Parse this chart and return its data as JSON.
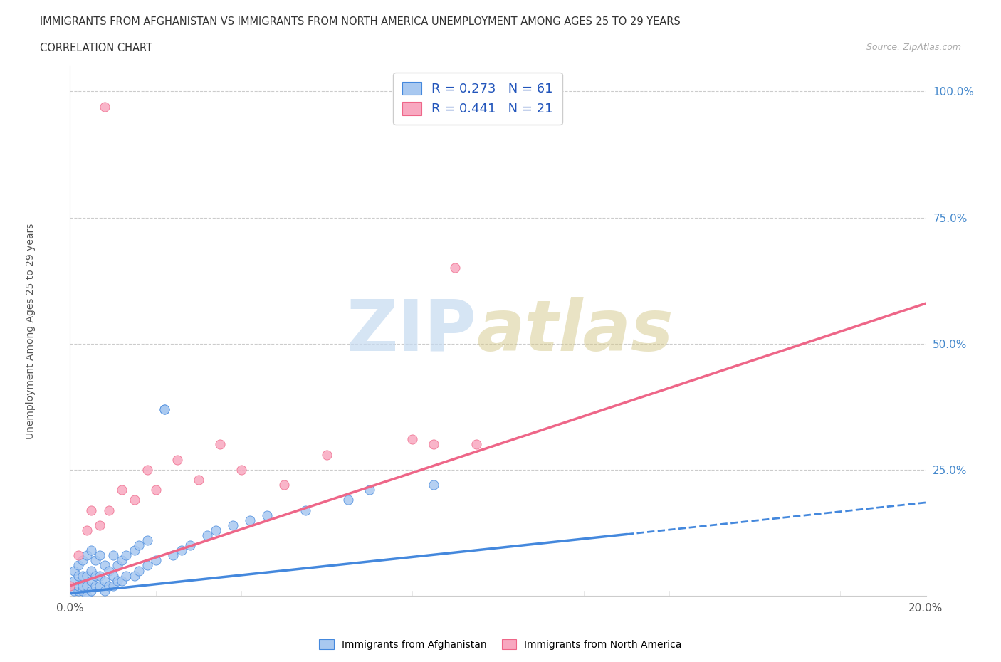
{
  "title_line1": "IMMIGRANTS FROM AFGHANISTAN VS IMMIGRANTS FROM NORTH AMERICA UNEMPLOYMENT AMONG AGES 25 TO 29 YEARS",
  "title_line2": "CORRELATION CHART",
  "source_text": "Source: ZipAtlas.com",
  "ylabel": "Unemployment Among Ages 25 to 29 years",
  "x_min": 0.0,
  "x_max": 0.2,
  "y_min": 0.0,
  "y_max": 1.05,
  "r_afghanistan": 0.273,
  "n_afghanistan": 61,
  "r_north_america": 0.441,
  "n_north_america": 21,
  "color_afghanistan": "#a8c8f0",
  "color_north_america": "#f8a8c0",
  "color_trend_afghanistan": "#4488dd",
  "color_trend_north_america": "#ee6688",
  "afg_trend_intercept": 0.005,
  "afg_trend_slope": 0.9,
  "nam_trend_intercept": 0.02,
  "nam_trend_slope": 2.8,
  "afg_trend_solid_end": 0.13,
  "afg_trend_dashed_end": 0.2,
  "afghanistan_x": [
    0.0,
    0.001,
    0.001,
    0.001,
    0.002,
    0.002,
    0.002,
    0.002,
    0.003,
    0.003,
    0.003,
    0.003,
    0.004,
    0.004,
    0.004,
    0.004,
    0.005,
    0.005,
    0.005,
    0.005,
    0.006,
    0.006,
    0.006,
    0.007,
    0.007,
    0.007,
    0.008,
    0.008,
    0.008,
    0.009,
    0.009,
    0.01,
    0.01,
    0.01,
    0.011,
    0.011,
    0.012,
    0.012,
    0.013,
    0.013,
    0.015,
    0.015,
    0.016,
    0.016,
    0.018,
    0.018,
    0.02,
    0.022,
    0.022,
    0.024,
    0.026,
    0.028,
    0.032,
    0.034,
    0.038,
    0.042,
    0.046,
    0.055,
    0.065,
    0.07,
    0.085
  ],
  "afghanistan_y": [
    0.02,
    0.01,
    0.03,
    0.05,
    0.01,
    0.02,
    0.04,
    0.06,
    0.01,
    0.02,
    0.04,
    0.07,
    0.0,
    0.02,
    0.04,
    0.08,
    0.01,
    0.03,
    0.05,
    0.09,
    0.02,
    0.04,
    0.07,
    0.02,
    0.04,
    0.08,
    0.01,
    0.03,
    0.06,
    0.02,
    0.05,
    0.02,
    0.04,
    0.08,
    0.03,
    0.06,
    0.03,
    0.07,
    0.04,
    0.08,
    0.04,
    0.09,
    0.05,
    0.1,
    0.06,
    0.11,
    0.07,
    0.37,
    0.37,
    0.08,
    0.09,
    0.1,
    0.12,
    0.13,
    0.14,
    0.15,
    0.16,
    0.17,
    0.19,
    0.21,
    0.22
  ],
  "north_america_x": [
    0.0,
    0.002,
    0.004,
    0.005,
    0.007,
    0.008,
    0.009,
    0.012,
    0.015,
    0.018,
    0.02,
    0.025,
    0.03,
    0.035,
    0.04,
    0.05,
    0.06,
    0.08,
    0.085,
    0.09,
    0.095
  ],
  "north_america_y": [
    0.02,
    0.08,
    0.13,
    0.17,
    0.14,
    0.97,
    0.17,
    0.21,
    0.19,
    0.25,
    0.21,
    0.27,
    0.23,
    0.3,
    0.25,
    0.22,
    0.28,
    0.31,
    0.3,
    0.65,
    0.3
  ]
}
